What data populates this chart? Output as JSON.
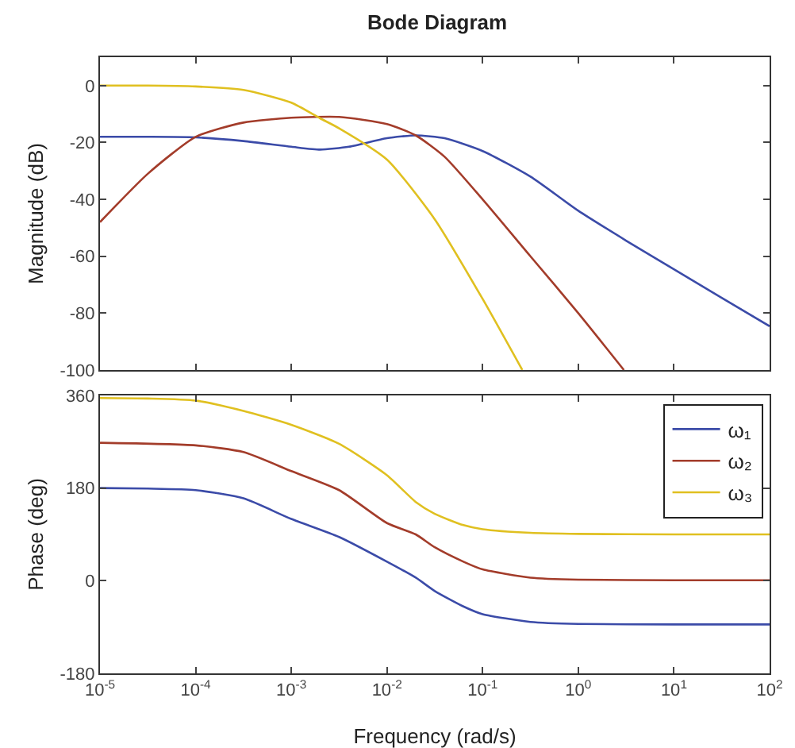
{
  "chart_data": [
    {
      "type": "line",
      "title": "Bode Diagram",
      "ylabel": "Magnitude (dB)",
      "log": "x",
      "xlim": [
        1e-05,
        100
      ],
      "xticks": [
        {
          "value": 1e-05,
          "label": null
        },
        {
          "value": 0.0001,
          "label": null
        },
        {
          "value": 0.001,
          "label": null
        },
        {
          "value": 0.01,
          "label": null
        },
        {
          "value": 0.1,
          "label": null
        },
        {
          "value": 1,
          "label": null
        },
        {
          "value": 10,
          "label": null
        },
        {
          "value": 100,
          "label": null
        }
      ],
      "ylim": [
        -100,
        10
      ],
      "yticks": [
        -100,
        -80,
        -60,
        -40,
        -20,
        0
      ],
      "tick_labels": "y",
      "grid": false,
      "legend": false,
      "marker": "none",
      "line_style": "solid",
      "series": [
        {
          "color": "#3b4ba8",
          "x": [
            1e-05,
            3.16e-05,
            0.0001,
            0.000316,
            0.001,
            0.002,
            0.004,
            0.01,
            0.02,
            0.04,
            0.1,
            0.316,
            1,
            3.16,
            10,
            31.6,
            100
          ],
          "values": [
            -18,
            -18,
            -18.2,
            -19.5,
            -21.5,
            -22.5,
            -21.5,
            -18.5,
            -17.5,
            -18.5,
            -23,
            -32,
            -44,
            -54.5,
            -64.6,
            -74.6,
            -84.6
          ]
        },
        {
          "color": "#a33c2a",
          "x": [
            1e-05,
            3.16e-05,
            0.0001,
            0.000316,
            0.001,
            0.00316,
            0.01,
            0.02,
            0.04,
            0.1,
            0.316,
            1,
            3
          ],
          "values": [
            -48,
            -31,
            -18,
            -13,
            -11.3,
            -11,
            -13.5,
            -17.5,
            -25,
            -40,
            -60,
            -80,
            -100
          ]
        },
        {
          "color": "#e0c020",
          "x": [
            1e-05,
            3.16e-05,
            0.0001,
            0.000316,
            0.001,
            0.002,
            0.00316,
            0.01,
            0.0316,
            0.1,
            0.26
          ],
          "values": [
            0,
            0,
            -0.3,
            -1.5,
            -6,
            -11.5,
            -15,
            -26,
            -47,
            -75,
            -100
          ]
        }
      ]
    },
    {
      "type": "line",
      "xlabel": "Frequency (rad/s)",
      "ylabel": "Phase (deg)",
      "log": "x",
      "xlim": [
        1e-05,
        100
      ],
      "xticks": [
        {
          "value": 1e-05,
          "label": "10$^{-5}$"
        },
        {
          "value": 0.0001,
          "label": "10$^{-4}$"
        },
        {
          "value": 0.001,
          "label": "10$^{-3}$"
        },
        {
          "value": 0.01,
          "label": "10$^{-2}$"
        },
        {
          "value": 0.1,
          "label": "10$^{-1}$"
        },
        {
          "value": 1,
          "label": "10$^{0}$"
        },
        {
          "value": 10,
          "label": "10$^{1}$"
        },
        {
          "value": 100,
          "label": "10$^{2}$"
        }
      ],
      "ylim": [
        -180,
        360
      ],
      "yticks": [
        -180,
        0,
        180,
        360
      ],
      "grid": false,
      "legend": "top right",
      "marker": "none",
      "line_style": "solid",
      "series": [
        {
          "name": "ω₁",
          "color": "#3b4ba8",
          "x": [
            1e-05,
            3.16e-05,
            0.0001,
            0.000316,
            0.001,
            0.00316,
            0.01,
            0.02,
            0.0316,
            0.063,
            0.1,
            0.316,
            1,
            10,
            100
          ],
          "values": [
            180,
            179,
            176,
            160,
            120,
            85,
            37,
            6,
            -20,
            -50,
            -65,
            -80,
            -84,
            -85,
            -85
          ]
        },
        {
          "name": "ω₂",
          "color": "#a33c2a",
          "x": [
            1e-05,
            0.0001,
            0.000316,
            0.001,
            0.00316,
            0.01,
            0.02,
            0.0316,
            0.063,
            0.1,
            0.316,
            1,
            10,
            100
          ],
          "values": [
            268,
            263,
            250,
            213,
            176,
            112,
            90,
            65,
            37,
            22,
            6,
            2,
            1,
            1
          ]
        },
        {
          "name": "ω₃",
          "color": "#e0c020",
          "x": [
            1e-05,
            3.16e-05,
            0.0001,
            0.000316,
            0.001,
            0.00316,
            0.01,
            0.02,
            0.0316,
            0.063,
            0.1,
            0.316,
            1,
            10,
            100
          ],
          "values": [
            355,
            354,
            350,
            330,
            303,
            266,
            205,
            153,
            130,
            108,
            100,
            93,
            91,
            90,
            90
          ]
        }
      ]
    }
  ]
}
